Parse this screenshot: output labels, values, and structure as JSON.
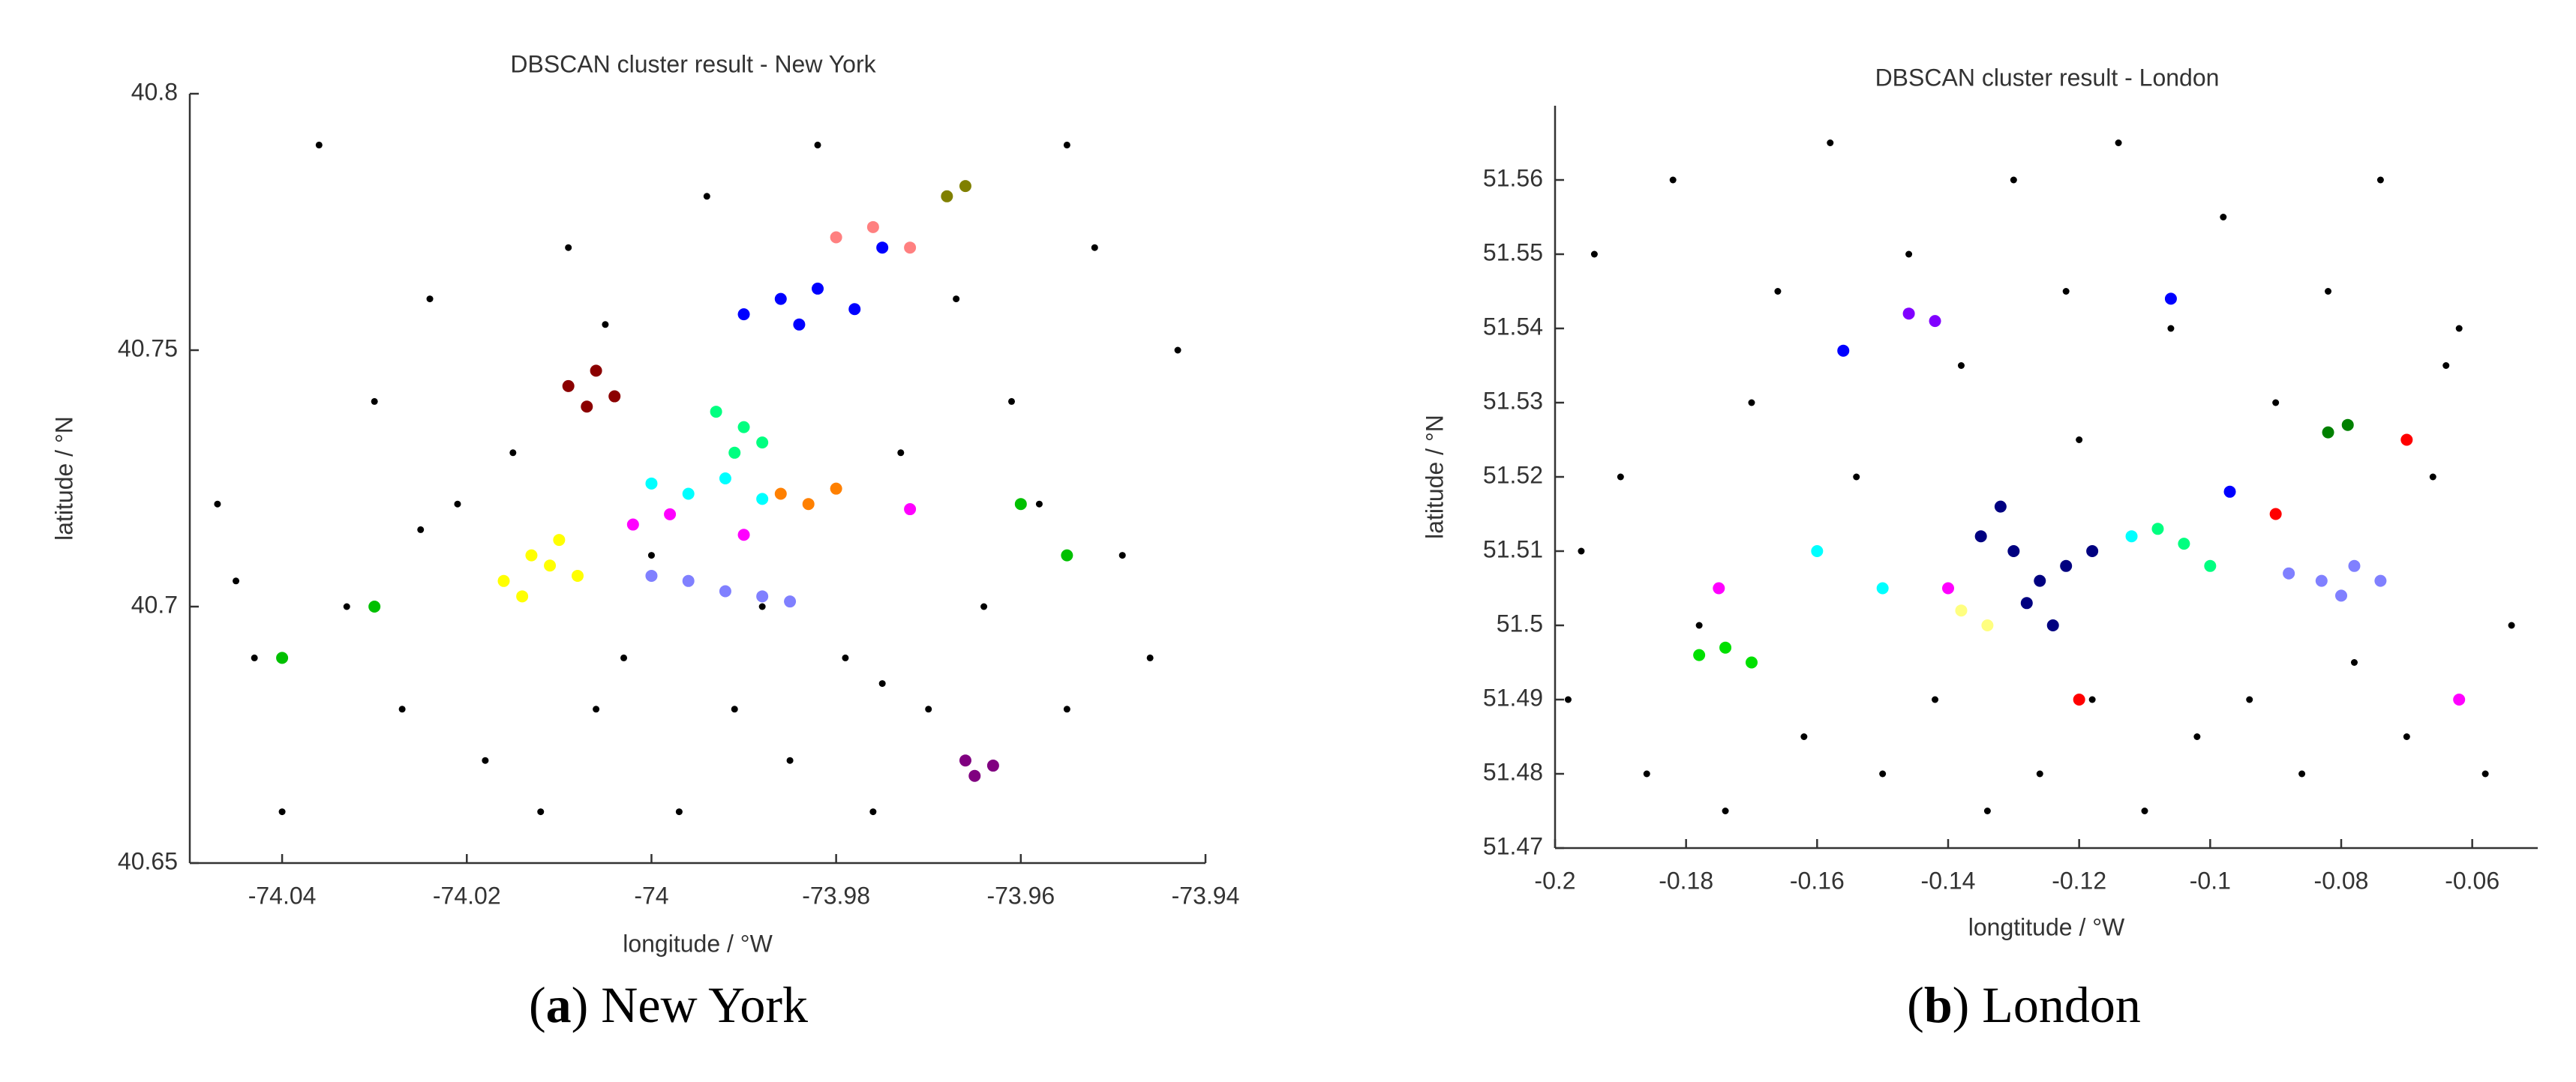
{
  "chart_data": [
    {
      "type": "scatter",
      "title": "DBSCAN cluster result - New York",
      "xlabel": "longitude / °W",
      "ylabel": "latitude / °N",
      "caption": [
        "(",
        "a",
        ") New York"
      ],
      "xlim": [
        -74.05,
        -73.94
      ],
      "xticks": [
        -74.04,
        -74.02,
        -74,
        -73.98,
        -73.96,
        -73.94
      ],
      "ylim": [
        40.65,
        40.8
      ],
      "yticks": [
        40.65,
        40.7,
        40.75,
        40.8
      ],
      "series": [
        {
          "color": "#000000",
          "x": [
            -74.047,
            -74.043,
            -74.04,
            -74.036,
            -74.033,
            -74.03,
            -74.027,
            -74.024,
            -74.021,
            -74.018,
            -74.015,
            -74.012,
            -74.009,
            -74.006,
            -74.003,
            -74.0,
            -73.997,
            -73.994,
            -73.991,
            -73.988,
            -73.985,
            -73.982,
            -73.979,
            -73.976,
            -73.973,
            -73.97,
            -73.967,
            -73.964,
            -73.961,
            -73.958,
            -73.955,
            -73.952,
            -73.949,
            -73.946,
            -73.943,
            -74.045,
            -74.025,
            -74.005,
            -73.975,
            -73.955
          ],
          "y": [
            40.72,
            40.69,
            40.66,
            40.79,
            40.7,
            40.74,
            40.68,
            40.76,
            40.72,
            40.67,
            40.73,
            40.66,
            40.77,
            40.68,
            40.69,
            40.71,
            40.66,
            40.78,
            40.68,
            40.7,
            40.67,
            40.79,
            40.69,
            40.66,
            40.73,
            40.68,
            40.76,
            40.7,
            40.74,
            40.72,
            40.68,
            40.77,
            40.71,
            40.69,
            40.75,
            40.705,
            40.715,
            40.755,
            40.685,
            40.79
          ]
        },
        {
          "color": "#ffff00",
          "x": [
            -74.016,
            -74.013,
            -74.01,
            -74.008,
            -74.014,
            -74.011
          ],
          "y": [
            40.705,
            40.71,
            40.713,
            40.706,
            40.702,
            40.708
          ]
        },
        {
          "color": "#0000ff",
          "x": [
            -73.99,
            -73.986,
            -73.982,
            -73.978,
            -73.984,
            -73.975
          ],
          "y": [
            40.757,
            40.76,
            40.762,
            40.758,
            40.755,
            40.77
          ]
        },
        {
          "color": "#8b0000",
          "x": [
            -74.009,
            -74.006,
            -74.004,
            -74.007
          ],
          "y": [
            40.743,
            40.746,
            40.741,
            40.739
          ]
        },
        {
          "color": "#8080ff",
          "x": [
            -74.0,
            -73.996,
            -73.992,
            -73.988,
            -73.985
          ],
          "y": [
            40.706,
            40.705,
            40.703,
            40.702,
            40.701
          ]
        },
        {
          "color": "#00ff80",
          "x": [
            -73.993,
            -73.99,
            -73.988,
            -73.991
          ],
          "y": [
            40.738,
            40.735,
            40.732,
            40.73
          ]
        },
        {
          "color": "#00ffff",
          "x": [
            -74.0,
            -73.996,
            -73.992,
            -73.988
          ],
          "y": [
            40.724,
            40.722,
            40.725,
            40.721
          ]
        },
        {
          "color": "#ff00ff",
          "x": [
            -74.002,
            -73.998,
            -73.99,
            -73.972
          ],
          "y": [
            40.716,
            40.718,
            40.714,
            40.719
          ]
        },
        {
          "color": "#800080",
          "x": [
            -73.966,
            -73.963,
            -73.965
          ],
          "y": [
            40.67,
            40.669,
            40.667
          ]
        },
        {
          "color": "#ff8000",
          "x": [
            -73.986,
            -73.983,
            -73.98
          ],
          "y": [
            40.722,
            40.72,
            40.723
          ]
        },
        {
          "color": "#ff8080",
          "x": [
            -73.98,
            -73.976,
            -73.972
          ],
          "y": [
            40.772,
            40.774,
            40.77
          ]
        },
        {
          "color": "#808000",
          "x": [
            -73.968,
            -73.966
          ],
          "y": [
            40.78,
            40.782
          ]
        },
        {
          "color": "#00c000",
          "x": [
            -74.03,
            -73.96,
            -73.955,
            -74.04
          ],
          "y": [
            40.7,
            40.72,
            40.71,
            40.69
          ]
        }
      ]
    },
    {
      "type": "scatter",
      "title": "DBSCAN cluster result - London",
      "xlabel": "longtitude / °W",
      "ylabel": "latitude / °N",
      "caption": [
        "(",
        "b",
        ") London"
      ],
      "xlim": [
        -0.2,
        -0.05
      ],
      "xticks": [
        -0.2,
        -0.18,
        -0.16,
        -0.14,
        -0.12,
        -0.1,
        -0.08,
        -0.06
      ],
      "ylim": [
        51.47,
        51.57
      ],
      "yticks": [
        51.47,
        51.48,
        51.49,
        51.5,
        51.51,
        51.52,
        51.53,
        51.54,
        51.55,
        51.56
      ],
      "series": [
        {
          "color": "#000000",
          "x": [
            -0.198,
            -0.194,
            -0.19,
            -0.186,
            -0.182,
            -0.178,
            -0.174,
            -0.17,
            -0.166,
            -0.162,
            -0.158,
            -0.154,
            -0.15,
            -0.146,
            -0.142,
            -0.138,
            -0.134,
            -0.13,
            -0.126,
            -0.122,
            -0.118,
            -0.114,
            -0.11,
            -0.106,
            -0.102,
            -0.098,
            -0.094,
            -0.09,
            -0.086,
            -0.082,
            -0.078,
            -0.074,
            -0.07,
            -0.066,
            -0.062,
            -0.058,
            -0.054,
            -0.196,
            -0.12,
            -0.064
          ],
          "y": [
            51.49,
            51.55,
            51.52,
            51.48,
            51.56,
            51.5,
            51.475,
            51.53,
            51.545,
            51.485,
            51.565,
            51.52,
            51.48,
            51.55,
            51.49,
            51.535,
            51.475,
            51.56,
            51.48,
            51.545,
            51.49,
            51.565,
            51.475,
            51.54,
            51.485,
            51.555,
            51.49,
            51.53,
            51.48,
            51.545,
            51.495,
            51.56,
            51.485,
            51.52,
            51.54,
            51.48,
            51.5,
            51.51,
            51.525,
            51.535
          ]
        },
        {
          "color": "#000080",
          "x": [
            -0.135,
            -0.13,
            -0.126,
            -0.122,
            -0.128,
            -0.124,
            -0.118,
            -0.132
          ],
          "y": [
            51.512,
            51.51,
            51.506,
            51.508,
            51.503,
            51.5,
            51.51,
            51.516
          ]
        },
        {
          "color": "#8080ff",
          "x": [
            -0.088,
            -0.083,
            -0.078,
            -0.074,
            -0.08
          ],
          "y": [
            51.507,
            51.506,
            51.508,
            51.506,
            51.504
          ]
        },
        {
          "color": "#008000",
          "x": [
            -0.082,
            -0.079
          ],
          "y": [
            51.526,
            51.527
          ]
        },
        {
          "color": "#00e000",
          "x": [
            -0.178,
            -0.174,
            -0.17
          ],
          "y": [
            51.496,
            51.497,
            51.495
          ]
        },
        {
          "color": "#00ff80",
          "x": [
            -0.108,
            -0.104,
            -0.1
          ],
          "y": [
            51.513,
            51.511,
            51.508
          ]
        },
        {
          "color": "#ffff80",
          "x": [
            -0.138,
            -0.134
          ],
          "y": [
            51.502,
            51.5
          ]
        },
        {
          "color": "#8000ff",
          "x": [
            -0.146,
            -0.142
          ],
          "y": [
            51.542,
            51.541
          ]
        },
        {
          "color": "#0000ff",
          "x": [
            -0.156,
            -0.097,
            -0.106
          ],
          "y": [
            51.537,
            51.518,
            51.544
          ]
        },
        {
          "color": "#00ffff",
          "x": [
            -0.16,
            -0.112,
            -0.15
          ],
          "y": [
            51.51,
            51.512,
            51.505
          ]
        },
        {
          "color": "#ff00ff",
          "x": [
            -0.175,
            -0.062,
            -0.14
          ],
          "y": [
            51.505,
            51.49,
            51.505
          ]
        },
        {
          "color": "#ff0000",
          "x": [
            -0.09,
            -0.12,
            -0.07
          ],
          "y": [
            51.515,
            51.49,
            51.525
          ]
        }
      ]
    }
  ]
}
